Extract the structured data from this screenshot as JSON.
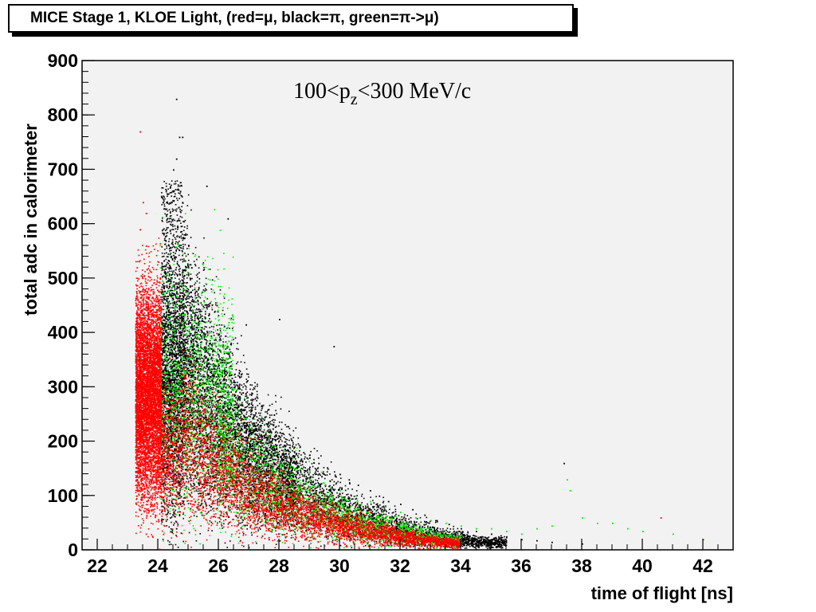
{
  "title": "MICE Stage 1, KLOE Light, (red=μ, black=π, green=π->μ)",
  "chart_data": {
    "type": "scatter",
    "title": "MICE Stage 1, KLOE Light, (red=μ, black=π, green=π->μ)",
    "xlabel": "time of flight [ns]",
    "ylabel": "total adc in calorimeter",
    "xlim": [
      21.5,
      43
    ],
    "ylim": [
      0,
      900
    ],
    "xticks": [
      22,
      24,
      26,
      28,
      30,
      32,
      34,
      36,
      38,
      40,
      42
    ],
    "yticks": [
      0,
      100,
      200,
      300,
      400,
      500,
      600,
      700,
      800,
      900
    ],
    "annotation": {
      "base": "100<p",
      "sub": "z",
      "tail": "<300 MeV/c"
    },
    "plot_background": "#f2f2f2",
    "grid": false,
    "series": [
      {
        "color": "#000000",
        "points": [
          [
            24.1,
            300
          ],
          [
            24.2,
            380
          ],
          [
            24.3,
            450
          ],
          [
            24.4,
            520
          ],
          [
            24.4,
            600
          ],
          [
            24.5,
            660
          ],
          [
            24.5,
            700
          ],
          [
            24.6,
            720
          ],
          [
            24.6,
            830
          ],
          [
            24.7,
            760
          ],
          [
            24.8,
            760
          ],
          [
            24.8,
            640
          ],
          [
            24.9,
            580
          ],
          [
            25.0,
            560
          ],
          [
            25.1,
            520
          ],
          [
            25.2,
            480
          ],
          [
            25.3,
            460
          ],
          [
            25.4,
            430
          ],
          [
            25.5,
            400
          ],
          [
            25.6,
            670
          ],
          [
            25.7,
            380
          ],
          [
            25.8,
            360
          ],
          [
            26.0,
            340
          ],
          [
            26.2,
            330
          ],
          [
            26.3,
            610
          ],
          [
            26.5,
            310
          ],
          [
            26.8,
            290
          ],
          [
            27.0,
            270
          ],
          [
            27.2,
            260
          ],
          [
            27.5,
            240
          ],
          [
            27.8,
            230
          ],
          [
            28.0,
            210
          ],
          [
            28.2,
            200
          ],
          [
            28.5,
            190
          ],
          [
            28.8,
            180
          ],
          [
            29.0,
            170
          ],
          [
            29.3,
            160
          ],
          [
            29.6,
            150
          ],
          [
            30.0,
            140
          ],
          [
            30.3,
            130
          ],
          [
            30.6,
            120
          ],
          [
            31.0,
            110
          ],
          [
            31.3,
            100
          ],
          [
            31.6,
            90
          ],
          [
            32.0,
            85
          ],
          [
            32.4,
            75
          ],
          [
            32.8,
            65
          ],
          [
            33.2,
            55
          ],
          [
            33.6,
            48
          ],
          [
            34.0,
            40
          ],
          [
            34.5,
            35
          ],
          [
            35.0,
            30
          ],
          [
            35.5,
            25
          ],
          [
            36.0,
            20
          ],
          [
            36.5,
            18
          ],
          [
            37.0,
            15
          ],
          [
            37.4,
            160
          ],
          [
            38.0,
            12
          ],
          [
            24.6,
            40
          ],
          [
            24.4,
            60
          ],
          [
            29.8,
            375
          ],
          [
            28.0,
            425
          ],
          [
            26.9,
            415
          ]
        ],
        "clusters": [
          {
            "x0": 24.1,
            "x1": 24.8,
            "kind": "core",
            "n": 2500
          },
          {
            "x0": 24.8,
            "x1": 28.5,
            "kind": "band",
            "n": 5200
          },
          {
            "x0": 28.5,
            "x1": 35.5,
            "kind": "band",
            "n": 2600
          }
        ]
      },
      {
        "color": "#00ee00",
        "points": [
          [
            24.3,
            260
          ],
          [
            24.6,
            280
          ],
          [
            25.0,
            300
          ],
          [
            25.5,
            270
          ],
          [
            26.0,
            240
          ],
          [
            26.5,
            220
          ],
          [
            27.0,
            200
          ],
          [
            27.5,
            180
          ],
          [
            28.0,
            160
          ],
          [
            28.5,
            150
          ],
          [
            29.0,
            130
          ],
          [
            29.5,
            120
          ],
          [
            30.0,
            110
          ],
          [
            30.5,
            100
          ],
          [
            31.0,
            90
          ],
          [
            31.5,
            80
          ],
          [
            32.0,
            70
          ],
          [
            32.5,
            60
          ],
          [
            33.0,
            55
          ],
          [
            33.5,
            50
          ],
          [
            34.0,
            45
          ],
          [
            34.5,
            40
          ],
          [
            35.0,
            40
          ],
          [
            35.5,
            35
          ],
          [
            36.0,
            30
          ],
          [
            36.5,
            40
          ],
          [
            37.0,
            45
          ],
          [
            37.5,
            130
          ],
          [
            37.6,
            110
          ],
          [
            38.0,
            60
          ],
          [
            38.5,
            50
          ],
          [
            39.0,
            50
          ],
          [
            39.5,
            40
          ],
          [
            40.0,
            35
          ],
          [
            41.0,
            30
          ],
          [
            42.0,
            20
          ]
        ],
        "clusters": [
          {
            "x0": 24.0,
            "x1": 26.5,
            "kind": "core",
            "n": 1500
          },
          {
            "x0": 26.0,
            "x1": 34.0,
            "kind": "band",
            "n": 2300
          }
        ]
      },
      {
        "color": "#ff0000",
        "points": [
          [
            23.4,
            770
          ],
          [
            23.5,
            640
          ],
          [
            23.6,
            620
          ],
          [
            23.4,
            590
          ],
          [
            23.6,
            560
          ],
          [
            23.3,
            520
          ],
          [
            23.5,
            480
          ],
          [
            23.8,
            450
          ],
          [
            23.3,
            400
          ],
          [
            23.9,
            380
          ],
          [
            24.0,
            350
          ],
          [
            23.3,
            300
          ],
          [
            23.5,
            250
          ],
          [
            23.4,
            200
          ],
          [
            23.3,
            160
          ],
          [
            24.0,
            140
          ],
          [
            24.3,
            200
          ],
          [
            24.8,
            220
          ],
          [
            25.5,
            200
          ],
          [
            26.0,
            180
          ],
          [
            26.5,
            160
          ],
          [
            27.0,
            150
          ],
          [
            27.5,
            140
          ],
          [
            28.0,
            130
          ],
          [
            28.5,
            120
          ],
          [
            29.0,
            110
          ],
          [
            29.5,
            100
          ],
          [
            30.0,
            90
          ],
          [
            30.5,
            80
          ],
          [
            31.0,
            70
          ],
          [
            31.5,
            60
          ],
          [
            32.0,
            50
          ],
          [
            32.5,
            40
          ],
          [
            33.0,
            30
          ],
          [
            33.5,
            20
          ],
          [
            34.0,
            10
          ],
          [
            40.6,
            60
          ],
          [
            23.6,
            30
          ]
        ],
        "clusters": [
          {
            "x0": 23.25,
            "x1": 24.1,
            "kind": "core",
            "n": 6000
          },
          {
            "x0": 24.1,
            "x1": 34.0,
            "kind": "band",
            "n": 4800
          }
        ]
      }
    ]
  }
}
